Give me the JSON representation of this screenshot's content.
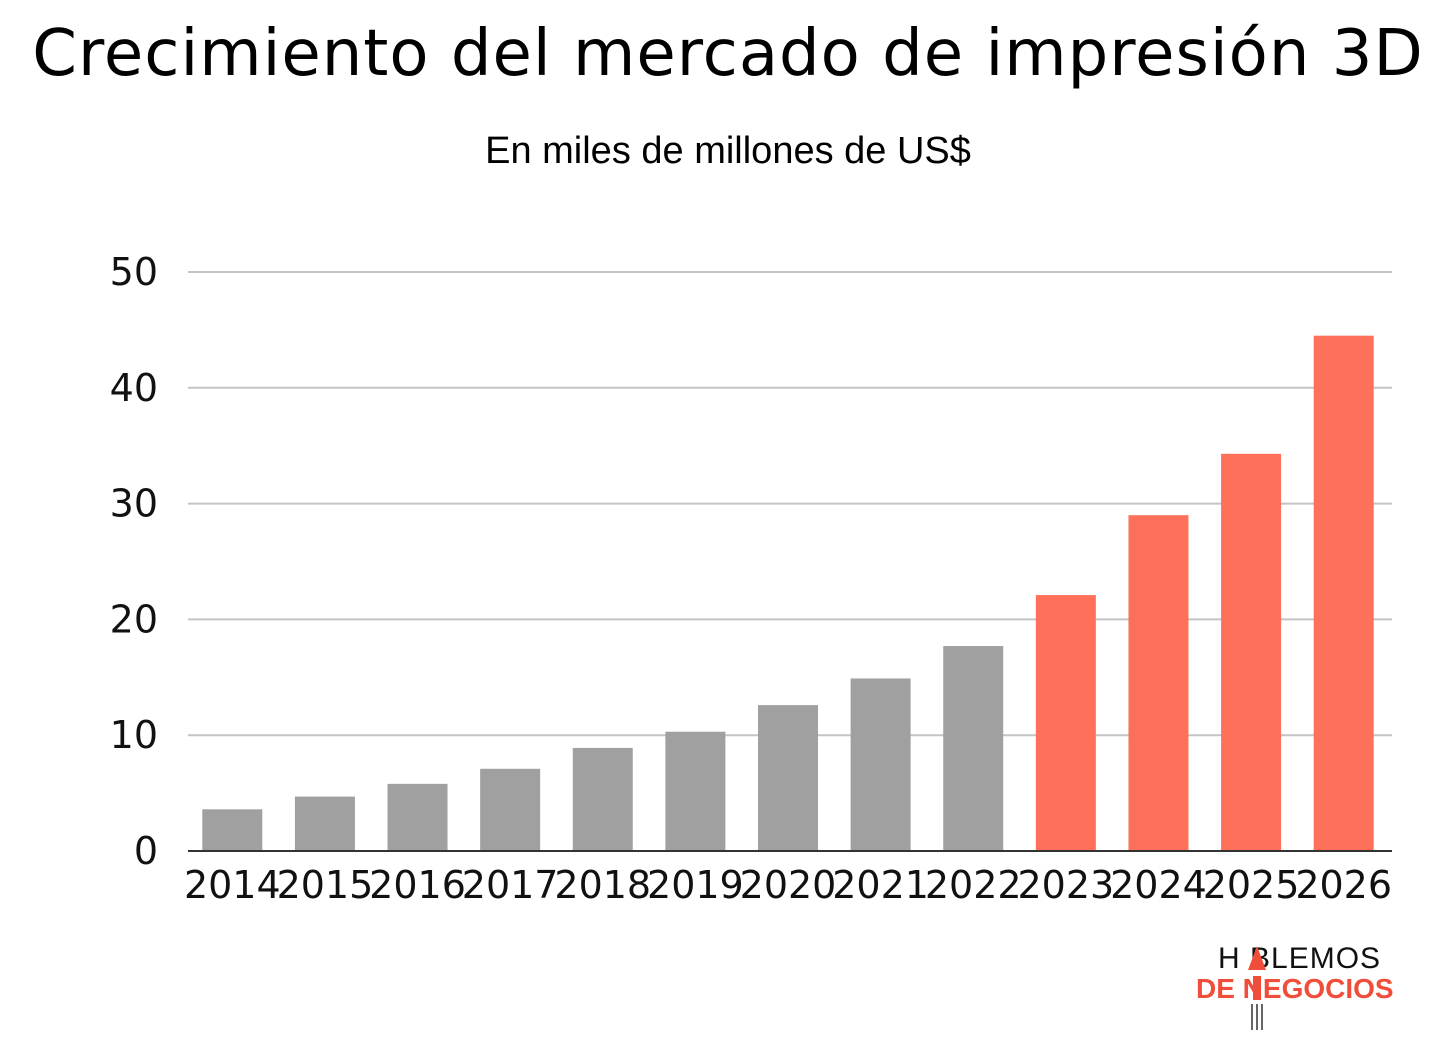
{
  "title": "Crecimiento del mercado de impresión 3D",
  "subtitle": "En miles de millones de US$",
  "chart_data": {
    "type": "bar",
    "title": "Crecimiento del mercado de impresión 3D",
    "subtitle": "En miles de millones de US$",
    "xlabel": "",
    "ylabel": "",
    "categories": [
      "2014",
      "2015",
      "2016",
      "2017",
      "2018",
      "2019",
      "2020",
      "2021",
      "2022",
      "2023",
      "2024",
      "2025",
      "2026"
    ],
    "values": [
      3.6,
      4.7,
      5.8,
      7.1,
      8.9,
      10.3,
      12.6,
      14.9,
      17.7,
      22.1,
      29.0,
      34.3,
      44.5
    ],
    "bar_colors": [
      "#a0a0a0",
      "#a0a0a0",
      "#a0a0a0",
      "#a0a0a0",
      "#a0a0a0",
      "#a0a0a0",
      "#a0a0a0",
      "#a0a0a0",
      "#a0a0a0",
      "#ff705a",
      "#ff705a",
      "#ff705a",
      "#ff705a"
    ],
    "ylim": [
      0,
      50
    ],
    "yticks": [
      "0",
      "10",
      "20",
      "30",
      "40",
      "50"
    ],
    "grid": true,
    "legend": "none"
  },
  "logo": {
    "line1": "H  BLEMOS",
    "line2": "DE   NEGOCIOS",
    "accent_color": "#f04e3a"
  }
}
